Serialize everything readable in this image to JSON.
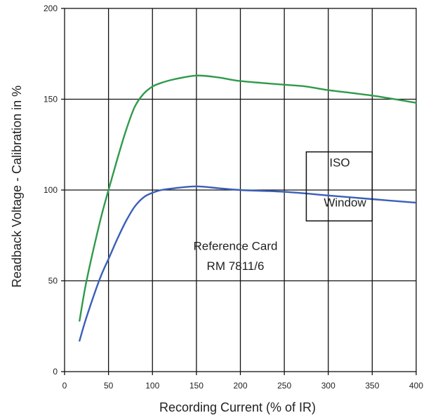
{
  "chart_data": {
    "type": "line",
    "title": "",
    "xlabel": "Recording Current (% of IR)",
    "ylabel": "Readback Voltage - Calibration in %",
    "xlim": [
      0,
      400
    ],
    "ylim": [
      0,
      200
    ],
    "xticks": [
      0,
      50,
      100,
      150,
      200,
      250,
      300,
      350,
      400
    ],
    "yticks": [
      0,
      50,
      100,
      150,
      200
    ],
    "grid": true,
    "series": [
      {
        "color": "#2f9a4b",
        "x": [
          17,
          25,
          40,
          50,
          60,
          70,
          80,
          90,
          100,
          110,
          125,
          150,
          175,
          200,
          250,
          275,
          300,
          350,
          400
        ],
        "y": [
          28,
          50,
          82,
          100,
          117,
          133,
          146,
          153,
          157,
          159,
          161,
          163,
          162,
          160,
          158,
          157,
          155,
          152,
          148
        ]
      },
      {
        "color": "#3a5fb8",
        "x": [
          17,
          25,
          40,
          50,
          60,
          70,
          80,
          90,
          100,
          110,
          125,
          150,
          175,
          200,
          250,
          300,
          350,
          400
        ],
        "y": [
          17,
          30,
          51,
          62,
          73,
          83,
          91,
          96,
          98.5,
          100,
          101,
          102,
          101,
          100,
          99,
          97,
          95,
          93
        ]
      }
    ],
    "annotations": [
      {
        "text": "Reference Card",
        "x": 200,
        "y": 67
      },
      {
        "text": "RM 7811/6",
        "x": 200,
        "y": 56
      }
    ],
    "box": {
      "x": [
        275,
        350
      ],
      "y": [
        83,
        121
      ],
      "labels": [
        {
          "text": "ISO",
          "x": 313,
          "y": 113
        },
        {
          "text": "Window",
          "x": 319,
          "y": 91
        }
      ]
    }
  }
}
